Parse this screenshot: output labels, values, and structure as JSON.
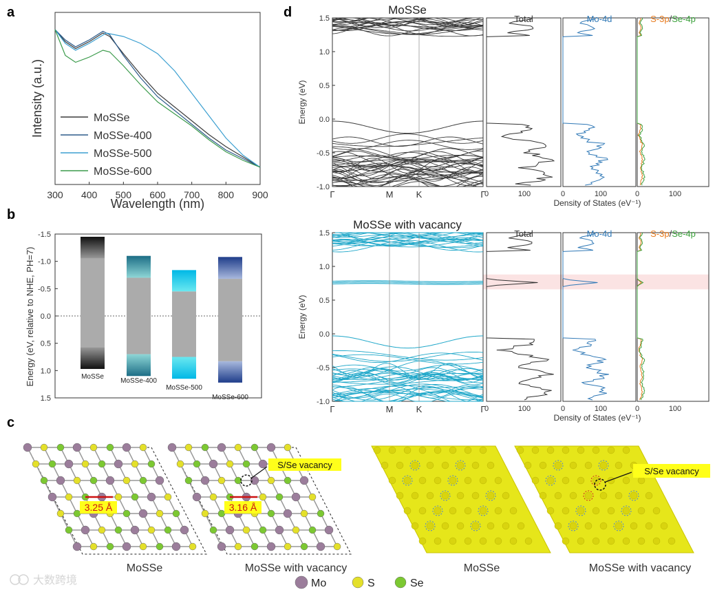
{
  "colors": {
    "mosse": "#3a3a3a",
    "mosse400": "#2c5a8a",
    "mosse500": "#3b9fd0",
    "mosse600": "#3a9a4a",
    "band_pristine": "#3b3b3b",
    "band_vacancy": "#1fa7c9",
    "dos_total": "#333333",
    "dos_mo": "#2f78b6",
    "dos_s": "#e87b1e",
    "dos_se": "#3aa03a",
    "mo_atom": "#9b7d9b",
    "s_atom": "#e4e02a",
    "se_atom": "#7cc832",
    "vacancy_bg": "#fbe3e3",
    "label_bg": "#ffff1a",
    "dist_marker": "#cc1111"
  },
  "chart_data": [
    {
      "id": "a",
      "panel_label": "a",
      "type": "line",
      "xlabel": "Wavelength (nm)",
      "ylabel": "Intensity (a.u.)",
      "xlim": [
        300,
        900
      ],
      "xticks": [
        "300",
        "400",
        "500",
        "600",
        "700",
        "800",
        "900"
      ],
      "series": [
        {
          "name": "MoSSe",
          "color": "#3a3a3a",
          "x": [
            300,
            330,
            360,
            400,
            440,
            460,
            500,
            550,
            600,
            650,
            700,
            750,
            800,
            850,
            900
          ],
          "y": [
            0.9,
            0.83,
            0.79,
            0.83,
            0.88,
            0.86,
            0.76,
            0.64,
            0.53,
            0.45,
            0.37,
            0.29,
            0.22,
            0.16,
            0.1
          ]
        },
        {
          "name": "MoSSe-400",
          "color": "#2c5a8a",
          "x": [
            300,
            330,
            360,
            400,
            440,
            460,
            500,
            550,
            600,
            650,
            700,
            750,
            800,
            850,
            900
          ],
          "y": [
            0.9,
            0.84,
            0.8,
            0.84,
            0.89,
            0.87,
            0.75,
            0.62,
            0.51,
            0.43,
            0.35,
            0.27,
            0.2,
            0.15,
            0.1
          ]
        },
        {
          "name": "MoSSe-500",
          "color": "#3b9fd0",
          "x": [
            300,
            330,
            360,
            400,
            450,
            500,
            550,
            600,
            650,
            700,
            750,
            800,
            850,
            900
          ],
          "y": [
            0.9,
            0.82,
            0.78,
            0.82,
            0.88,
            0.86,
            0.82,
            0.76,
            0.66,
            0.53,
            0.4,
            0.27,
            0.17,
            0.1
          ]
        },
        {
          "name": "MoSSe-600",
          "color": "#3a9a4a",
          "x": [
            300,
            330,
            360,
            400,
            440,
            460,
            500,
            550,
            600,
            650,
            700,
            750,
            800,
            850,
            900
          ],
          "y": [
            0.9,
            0.75,
            0.71,
            0.74,
            0.78,
            0.77,
            0.69,
            0.58,
            0.48,
            0.41,
            0.34,
            0.26,
            0.19,
            0.14,
            0.1
          ]
        }
      ]
    },
    {
      "id": "b",
      "panel_label": "b",
      "type": "bar",
      "ylabel": "Energy (eV, relative to NHE, PH=7)",
      "ylim": [
        1.5,
        -1.5
      ],
      "yticks": [
        "-1.5",
        "-1.0",
        "-0.5",
        "0.0",
        "0.5",
        "1.0",
        "1.5"
      ],
      "categories": [
        "MoSSe",
        "MoSSe-400",
        "MoSSe-500",
        "MoSSe-600"
      ],
      "cb_top": [
        -1.45,
        -1.1,
        -0.84,
        -1.08
      ],
      "cb_bottom": [
        -1.05,
        -0.7,
        -0.45,
        -0.68
      ],
      "vb_top": [
        0.57,
        0.7,
        0.75,
        0.83
      ],
      "vb_bottom": [
        0.97,
        1.1,
        1.15,
        1.22
      ],
      "dark_colors": [
        "#111111",
        "#1d6e86",
        "#00b8e6",
        "#1f3d8a"
      ],
      "light_colors": [
        "#9a9a9a",
        "#8ed6d6",
        "#6ae8f0",
        "#a8b8dd"
      ]
    },
    {
      "id": "d1",
      "panel_label": "d",
      "type": "line",
      "title": "MoSSe",
      "ylabel": "Energy (eV)",
      "ylim": [
        -1.0,
        1.5
      ],
      "yticks": [
        "1.5",
        "1.0",
        "0.5",
        "0.0",
        "-0.5",
        "-1.0"
      ],
      "kpoints": [
        "Γ",
        "M",
        "K",
        "Γ"
      ],
      "dos_headers": [
        "Total",
        "Mo-4d"
      ],
      "dos_header_sp": [
        "S-3p",
        "/",
        "Se-4p"
      ],
      "dos_xticks": [
        "0",
        "100"
      ],
      "dos_xlabel": "Density of States (eV⁻¹)"
    },
    {
      "id": "d2",
      "type": "line",
      "title": "MoSSe with vacancy",
      "ylabel": "Energy (eV)",
      "ylim": [
        -1.0,
        1.5
      ],
      "yticks": [
        "1.5",
        "1.0",
        "0.5",
        "0.0",
        "-0.5",
        "-1.0"
      ],
      "kpoints": [
        "Γ",
        "M",
        "K",
        "Γ"
      ],
      "dos_headers": [
        "Total",
        "Mo-4d"
      ],
      "dos_header_sp": [
        "S-3p",
        "/",
        "Se-4p"
      ],
      "dos_xticks": [
        "0",
        "100"
      ],
      "dos_xlabel": "Density of States (eV⁻¹)"
    }
  ],
  "panel_c": {
    "panel_label": "c",
    "captions": [
      "MoSSe",
      "MoSSe with vacancy",
      "MoSSe",
      "MoSSe with vacancy"
    ],
    "distance_labels": [
      "3.25 Å",
      "3.16 Å"
    ],
    "vacancy_label": "S/Se vacancy",
    "legend": [
      {
        "label": "Mo",
        "color": "#9b7d9b"
      },
      {
        "label": "S",
        "color": "#e4e02a"
      },
      {
        "label": "Se",
        "color": "#7cc832"
      }
    ]
  },
  "watermark": "大数跨境"
}
